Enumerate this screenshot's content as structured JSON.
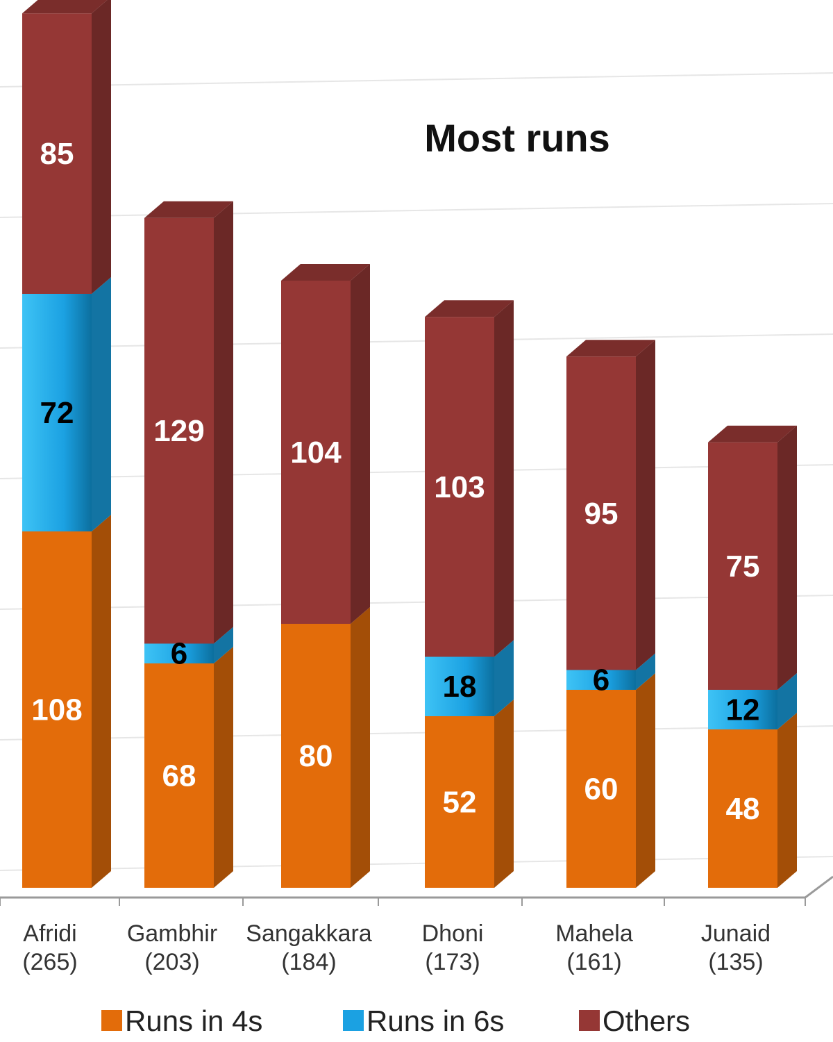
{
  "chart_data": {
    "type": "bar",
    "stacked": true,
    "style": "3d",
    "title": "Most runs",
    "categories": [
      "Afridi",
      "Gambhir",
      "Sangakkara",
      "Dhoni",
      "Mahela",
      "Junaid"
    ],
    "category_totals": [
      "(265)",
      "(203)",
      "(184)",
      "(173)",
      "(161)",
      "(135)"
    ],
    "series": [
      {
        "name": "Runs in 4s",
        "values": [
          108,
          68,
          80,
          52,
          60,
          48
        ],
        "color": "#E36C0A",
        "label_color": "#FFFFFF"
      },
      {
        "name": "Runs in 6s",
        "values": [
          72,
          6,
          0,
          18,
          6,
          12
        ],
        "color": "#1BA1E2",
        "label_color": "#000000"
      },
      {
        "name": "Others",
        "values": [
          85,
          129,
          104,
          103,
          95,
          75
        ],
        "color": "#953735",
        "label_color": "#FFFFFF"
      }
    ],
    "ylim": [
      0,
      280
    ],
    "grid": true,
    "legend": "bottom"
  }
}
